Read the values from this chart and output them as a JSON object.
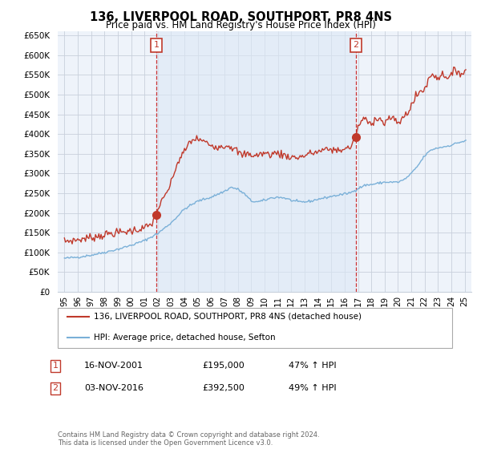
{
  "title": "136, LIVERPOOL ROAD, SOUTHPORT, PR8 4NS",
  "subtitle": "Price paid vs. HM Land Registry's House Price Index (HPI)",
  "legend_line1": "136, LIVERPOOL ROAD, SOUTHPORT, PR8 4NS (detached house)",
  "legend_line2": "HPI: Average price, detached house, Sefton",
  "footer": "Contains HM Land Registry data © Crown copyright and database right 2024.\nThis data is licensed under the Open Government Licence v3.0.",
  "annotation1": {
    "num": "1",
    "date": "16-NOV-2001",
    "price": "£195,000",
    "change": "47% ↑ HPI"
  },
  "annotation2": {
    "num": "2",
    "date": "03-NOV-2016",
    "price": "£392,500",
    "change": "49% ↑ HPI"
  },
  "sale1_x": 2001.88,
  "sale1_y": 195000,
  "sale2_x": 2016.84,
  "sale2_y": 392500,
  "ylim": [
    0,
    660000
  ],
  "xlim": [
    1994.5,
    2025.5
  ],
  "yticks": [
    0,
    50000,
    100000,
    150000,
    200000,
    250000,
    300000,
    350000,
    400000,
    450000,
    500000,
    550000,
    600000,
    650000
  ],
  "ytick_labels": [
    "£0",
    "£50K",
    "£100K",
    "£150K",
    "£200K",
    "£250K",
    "£300K",
    "£350K",
    "£400K",
    "£450K",
    "£500K",
    "£550K",
    "£600K",
    "£650K"
  ],
  "hpi_color": "#7ab0d8",
  "sale_color": "#c0392b",
  "vline_color": "#cc3333",
  "background_color": "#ffffff",
  "plot_bg_color": "#eef3fa",
  "grid_color": "#c8d0dc"
}
